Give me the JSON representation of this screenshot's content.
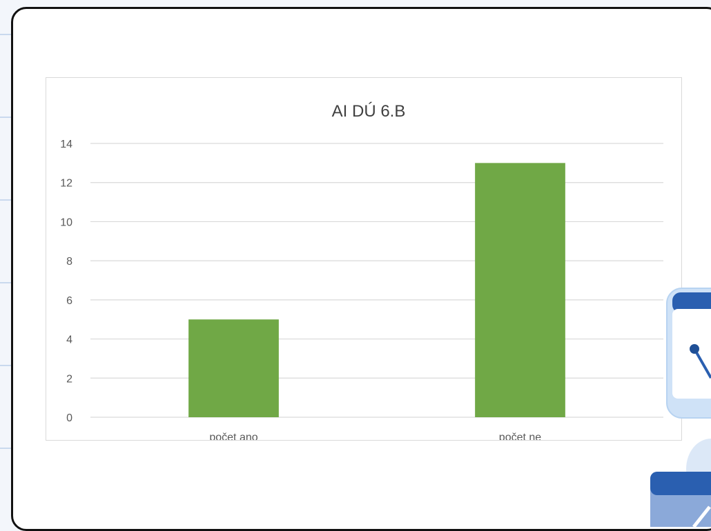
{
  "colors": {
    "bar": "#70a846",
    "grid": "#d9d9d9",
    "axis_text": "#595959",
    "title": "#404040",
    "card_border": "#111111"
  },
  "decoration": {
    "icons": [
      "clock-icon",
      "calendar-icon"
    ]
  },
  "chart_data": {
    "type": "bar",
    "title": "AI DÚ 6.B",
    "categories": [
      "počet ano",
      "počet ne"
    ],
    "values": [
      5,
      13
    ],
    "ylim": [
      0,
      14
    ],
    "yticks": [
      0,
      2,
      4,
      6,
      8,
      10,
      12,
      14
    ],
    "xlabel": "",
    "ylabel": "",
    "grid": true,
    "legend": false
  }
}
